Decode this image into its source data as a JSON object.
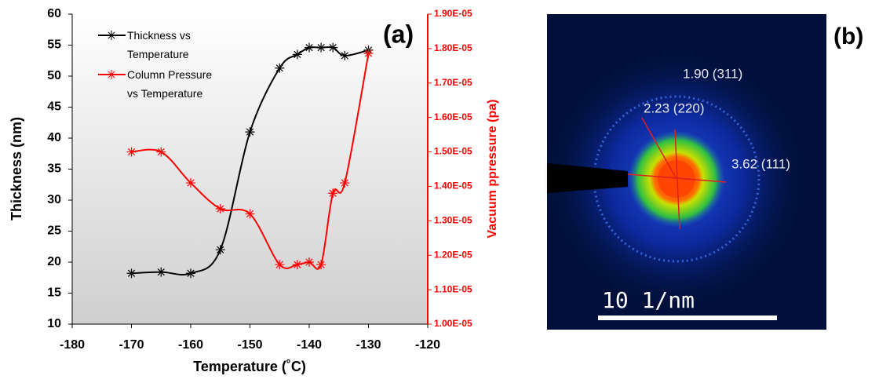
{
  "chart_data": {
    "type": "line",
    "x_label": "Temperature (˚C)",
    "y_label": "Thickness (nm)",
    "y2_label": "Vacuum ppressure (pa)",
    "x": [
      -170,
      -165,
      -160,
      -155,
      -150,
      -145,
      -142,
      -140,
      -138,
      -136,
      -134,
      -130
    ],
    "series": [
      {
        "name": "Thickness vs Temperature",
        "color": "#000000",
        "values": [
          18.2,
          18.4,
          18.2,
          22.0,
          41.0,
          51.3,
          53.5,
          54.6,
          54.6,
          54.6,
          53.3,
          54.2
        ]
      },
      {
        "name": "Column Pressure vs Temperature",
        "color": "#ff0000",
        "axis": "y2",
        "values": [
          1.5e-05,
          1.5e-05,
          1.41e-05,
          1.335e-05,
          1.32e-05,
          1.173e-05,
          1.173e-05,
          1.18e-05,
          1.173e-05,
          1.38e-05,
          1.41e-05,
          1.786e-05
        ]
      }
    ],
    "xlim": [
      -180,
      -120
    ],
    "xticks": [
      -180,
      -170,
      -160,
      -150,
      -140,
      -130,
      -120
    ],
    "ylim": [
      10,
      60
    ],
    "yticks": [
      10,
      15,
      20,
      25,
      30,
      35,
      40,
      45,
      50,
      55,
      60
    ],
    "y2lim": [
      1e-05,
      1.9e-05
    ],
    "y2ticks": [
      {
        "value": 1e-05,
        "label": "1.00E-05"
      },
      {
        "value": 1.1e-05,
        "label": "1.10E-05"
      },
      {
        "value": 1.2e-05,
        "label": "1.20E-05"
      },
      {
        "value": 1.3e-05,
        "label": "1.30E-05"
      },
      {
        "value": 1.4e-05,
        "label": "1.40E-05"
      },
      {
        "value": 1.5e-05,
        "label": "1.50E-05"
      },
      {
        "value": 1.6e-05,
        "label": "1.60E-05"
      },
      {
        "value": 1.7e-05,
        "label": "1.70E-05"
      },
      {
        "value": 1.8e-05,
        "label": "1.80E-05"
      },
      {
        "value": 1.9e-05,
        "label": "1.90E-05"
      }
    ],
    "y2_color": "#ff0000",
    "legend": "upper left"
  },
  "panel_labels": [
    "(a)",
    "(b)"
  ],
  "diffraction_image": {
    "rings": [
      "1.90 (311)",
      "2.23 (220)",
      "3.62 (111)"
    ],
    "scale_bar": "10 1/nm"
  }
}
